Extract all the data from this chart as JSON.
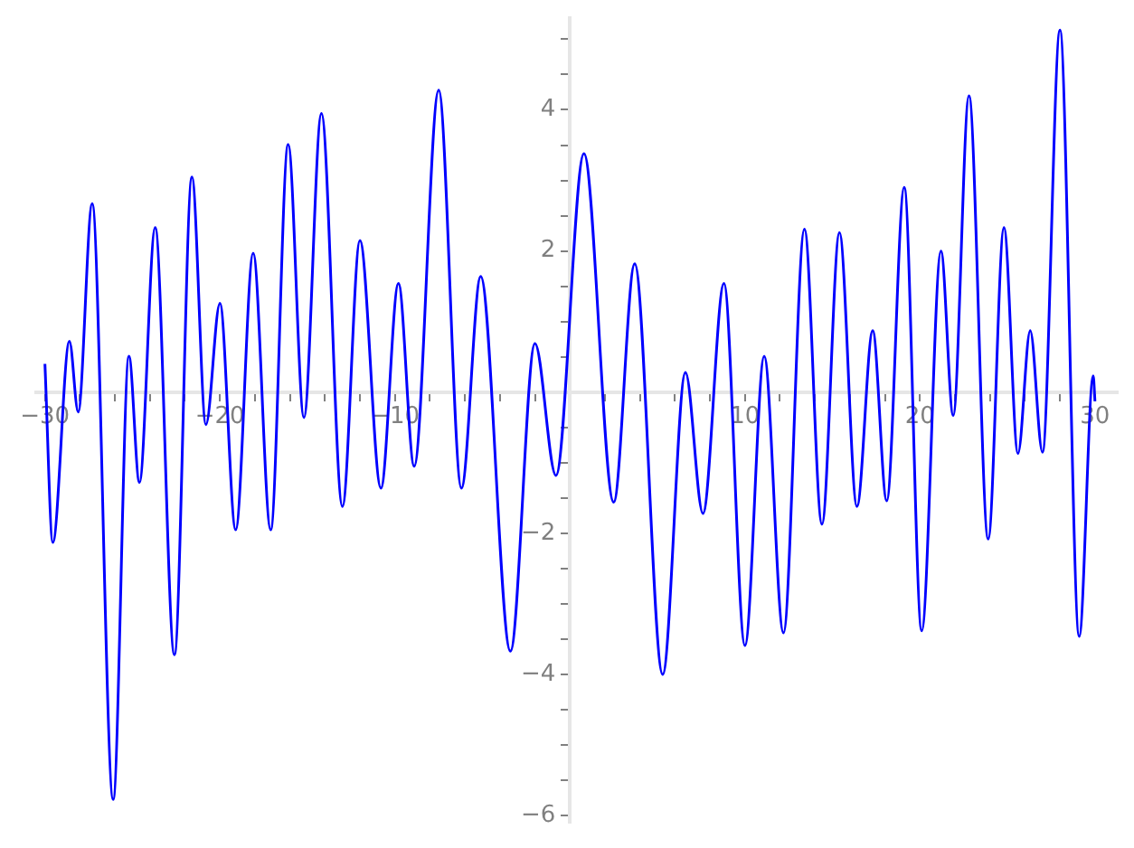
{
  "chart_data": {
    "type": "line",
    "x": [
      -30,
      -29.55,
      -28.6,
      -28.1,
      -27.3,
      -26.1,
      -25.2,
      -24.6,
      -23.7,
      -22.6,
      -21.6,
      -20.8,
      -20.0,
      -19.1,
      -18.1,
      -17.1,
      -16.1,
      -15.2,
      -14.2,
      -13.0,
      -12.0,
      -10.8,
      -9.8,
      -8.9,
      -7.5,
      -6.2,
      -5.1,
      -3.4,
      -2.0,
      -0.8,
      0.8,
      2.5,
      3.7,
      5.3,
      6.6,
      7.6,
      8.8,
      10.0,
      11.1,
      12.2,
      13.4,
      14.4,
      15.4,
      16.4,
      17.3,
      18.1,
      19.1,
      20.1,
      21.2,
      21.9,
      22.8,
      23.9,
      24.8,
      25.6,
      26.3,
      27.0,
      28.0,
      29.1,
      29.9,
      30
    ],
    "series": [
      {
        "color": "#0000ff",
        "values": [
          0.4,
          -2.13,
          0.72,
          -0.28,
          2.67,
          -5.77,
          0.51,
          -1.28,
          2.33,
          -3.72,
          3.05,
          -0.46,
          1.26,
          -1.95,
          1.97,
          -1.95,
          3.51,
          -0.36,
          3.95,
          -1.62,
          2.15,
          -1.36,
          1.54,
          -1.05,
          4.28,
          -1.36,
          1.64,
          -3.67,
          0.69,
          -1.18,
          3.38,
          -1.56,
          1.82,
          -4.0,
          0.28,
          -1.72,
          1.54,
          -3.59,
          0.51,
          -3.41,
          2.31,
          -1.87,
          2.26,
          -1.62,
          0.87,
          -1.54,
          2.9,
          -3.38,
          2.0,
          -0.33,
          4.2,
          -2.08,
          2.33,
          -0.87,
          0.87,
          -0.85,
          5.13,
          -3.46,
          0.23,
          -0.13
        ]
      }
    ],
    "xlim": [
      -30.5,
      31.3
    ],
    "ylim": [
      -6.1,
      5.3
    ],
    "xticks": [
      {
        "value": -30,
        "label": "−30"
      },
      {
        "value": -28,
        "label": null
      },
      {
        "value": -26,
        "label": null
      },
      {
        "value": -24,
        "label": null
      },
      {
        "value": -22,
        "label": null
      },
      {
        "value": -20,
        "label": "−20"
      },
      {
        "value": -18,
        "label": null
      },
      {
        "value": -16,
        "label": null
      },
      {
        "value": -14,
        "label": null
      },
      {
        "value": -12,
        "label": null
      },
      {
        "value": -10,
        "label": "−10"
      },
      {
        "value": -8,
        "label": null
      },
      {
        "value": -6,
        "label": null
      },
      {
        "value": -4,
        "label": null
      },
      {
        "value": -2,
        "label": null
      },
      {
        "value": 2,
        "label": null
      },
      {
        "value": 4,
        "label": null
      },
      {
        "value": 6,
        "label": null
      },
      {
        "value": 8,
        "label": null
      },
      {
        "value": 10,
        "label": "10"
      },
      {
        "value": 12,
        "label": null
      },
      {
        "value": 14,
        "label": null
      },
      {
        "value": 16,
        "label": null
      },
      {
        "value": 18,
        "label": null
      },
      {
        "value": 20,
        "label": "20"
      },
      {
        "value": 22,
        "label": null
      },
      {
        "value": 24,
        "label": null
      },
      {
        "value": 26,
        "label": null
      },
      {
        "value": 28,
        "label": null
      },
      {
        "value": 30,
        "label": "30"
      }
    ],
    "yticks": [
      {
        "value": -6,
        "label": "−6"
      },
      {
        "value": -5.5,
        "label": null
      },
      {
        "value": -5,
        "label": null
      },
      {
        "value": -4.5,
        "label": null
      },
      {
        "value": -4,
        "label": "−4"
      },
      {
        "value": -3.5,
        "label": null
      },
      {
        "value": -3,
        "label": null
      },
      {
        "value": -2.5,
        "label": null
      },
      {
        "value": -2,
        "label": "−2"
      },
      {
        "value": -1.5,
        "label": null
      },
      {
        "value": -1,
        "label": null
      },
      {
        "value": -0.5,
        "label": null
      },
      {
        "value": 0.5,
        "label": null
      },
      {
        "value": 1,
        "label": null
      },
      {
        "value": 1.5,
        "label": null
      },
      {
        "value": 2,
        "label": "2"
      },
      {
        "value": 2.5,
        "label": null
      },
      {
        "value": 3,
        "label": null
      },
      {
        "value": 3.5,
        "label": null
      },
      {
        "value": 4,
        "label": "4"
      },
      {
        "value": 4.5,
        "label": null
      },
      {
        "value": 5,
        "label": null
      }
    ],
    "marker": "none",
    "line_style": "solid",
    "grid": false,
    "legend": false
  }
}
